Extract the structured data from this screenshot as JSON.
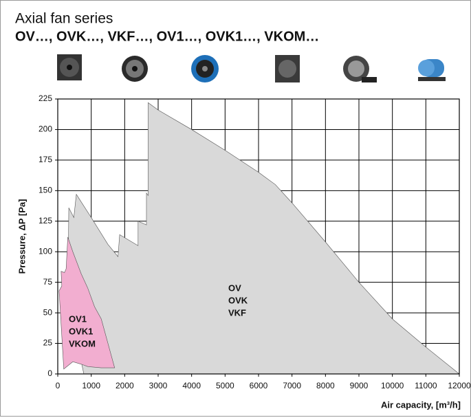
{
  "chart_data": {
    "type": "area",
    "title": "Axial fan series",
    "subtitle": "OV…, OVK…, VKF…, OV1…, OVK1…, VKOM…",
    "xlabel": "Air capacity, [m³/h]",
    "ylabel": "Pressure, ΔP [Pa]",
    "xlim": [
      0,
      12000
    ],
    "ylim": [
      0,
      225
    ],
    "xticks": [
      0,
      1000,
      2000,
      3000,
      4000,
      5000,
      6000,
      7000,
      8000,
      9000,
      10000,
      11000,
      12000
    ],
    "yticks": [
      0,
      25,
      50,
      75,
      100,
      125,
      150,
      175,
      200,
      225
    ],
    "grid": true,
    "series": [
      {
        "labels": [
          "OV",
          "OVK",
          "VKF"
        ],
        "color": "#d9d9d9",
        "x": [
          780,
          300,
          330,
          480,
          555,
          1000,
          1500,
          1800,
          1850,
          2400,
          2400,
          2650,
          2650,
          2700,
          2700,
          3000,
          4000,
          5000,
          6000,
          6500,
          7000,
          8000,
          9000,
          10000,
          11000,
          12000
        ],
        "values": [
          0,
          60,
          136,
          128,
          147,
          128,
          106,
          96,
          114,
          105,
          125,
          122,
          148,
          146,
          222,
          216,
          200,
          183,
          165,
          155,
          140,
          108,
          75,
          45,
          22,
          0
        ]
      },
      {
        "labels": [
          "OV1",
          "OVK1",
          "VKOM"
        ],
        "color": "#f2aed0",
        "x": [
          180,
          40,
          120,
          100,
          200,
          250,
          300,
          450,
          700,
          900,
          1100,
          1300,
          1500,
          1700,
          1300,
          900,
          700,
          450
        ],
        "values": [
          4,
          68,
          72,
          84,
          83,
          86,
          112,
          100,
          82,
          70,
          55,
          45,
          25,
          5,
          5,
          6,
          8,
          10
        ]
      }
    ]
  }
}
